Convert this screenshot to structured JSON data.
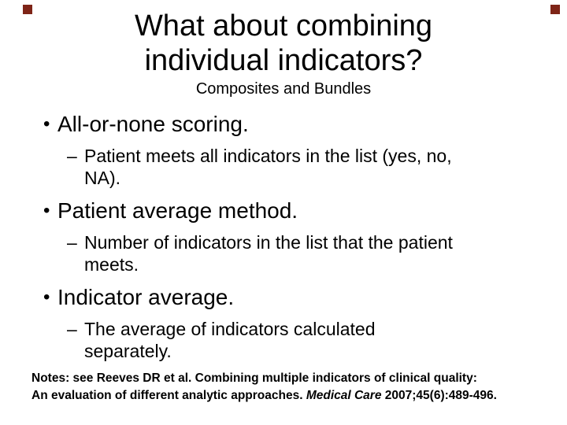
{
  "slide": {
    "title_lines": [
      "What about combining",
      "individual indicators?"
    ],
    "subtitle": "Composites and Bundles",
    "bullet_char": "•",
    "dash_char": "–",
    "bullets": [
      {
        "heading": "All-or-none scoring.",
        "sub_lines": [
          "Patient meets all indicators in the list (yes, no,",
          "NA)."
        ]
      },
      {
        "heading": "Patient average method.",
        "sub_lines": [
          "Number of indicators in the list that the patient",
          "meets."
        ]
      },
      {
        "heading": "Indicator average.",
        "sub_lines": [
          "The average of indicators calculated",
          "separately."
        ]
      }
    ],
    "notes": {
      "line1": "Notes: see Reeves DR et al. Combining multiple indicators of clinical quality:",
      "line2_pre": "An evaluation of different analytic approaches. ",
      "line2_italic": "Medical Care",
      "line2_post": " 2007;45(6):489-496."
    },
    "colors": {
      "background": "#ffffff",
      "text": "#000000",
      "corner_square": "#7e2417"
    }
  }
}
